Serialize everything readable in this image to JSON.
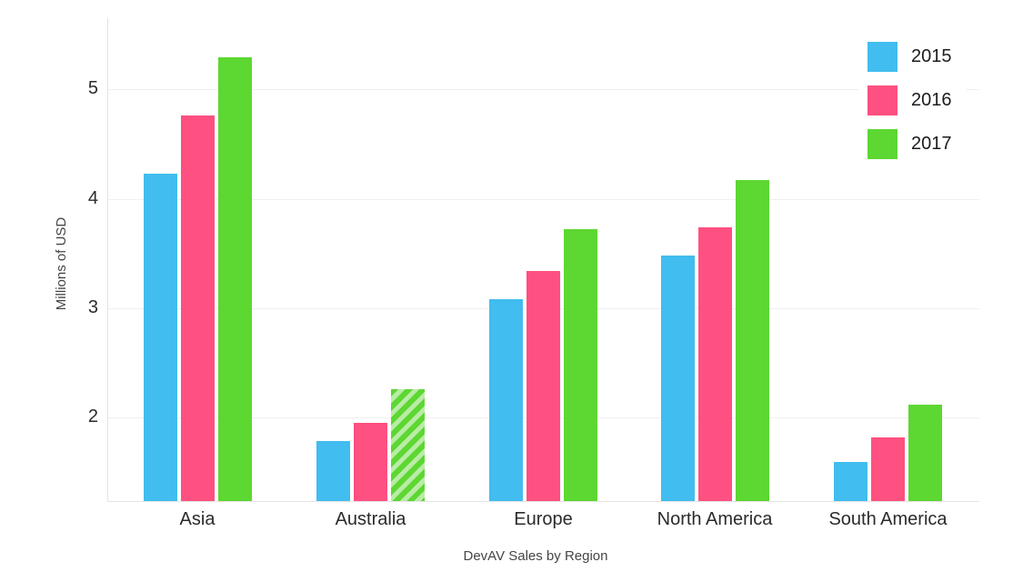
{
  "chart_data": {
    "type": "bar",
    "title": "",
    "xlabel": "DevAV Sales by Region",
    "ylabel": "Millions of USD",
    "categories": [
      "Asia",
      "Australia",
      "Europe",
      "North America",
      "South America"
    ],
    "series": [
      {
        "name": "2015",
        "color": "#41BDEF",
        "values": [
          4.23,
          1.78,
          3.08,
          3.48,
          1.59
        ]
      },
      {
        "name": "2016",
        "color": "#FE5081",
        "values": [
          4.76,
          1.95,
          3.34,
          3.74,
          1.82
        ]
      },
      {
        "name": "2017",
        "color": "#5DD732",
        "values": [
          5.29,
          2.26,
          3.72,
          4.17,
          2.12
        ]
      }
    ],
    "y_ticks": [
      2,
      3,
      4,
      5
    ],
    "ylim": [
      1.23,
      5.65
    ],
    "grid": true,
    "legend_position": "top-right",
    "hatched_bar": {
      "series": "2017",
      "category": "Australia",
      "hatch_color": "#B9ECA6"
    }
  },
  "colors": {
    "background": "#ffffff",
    "gridline": "#efefef",
    "axis_line": "#e4e4e4",
    "tick_text": "#2b2b2b",
    "category_text": "#2b2b2b",
    "axis_title_text": "#454545",
    "legend_text": "#1c1c1c"
  }
}
